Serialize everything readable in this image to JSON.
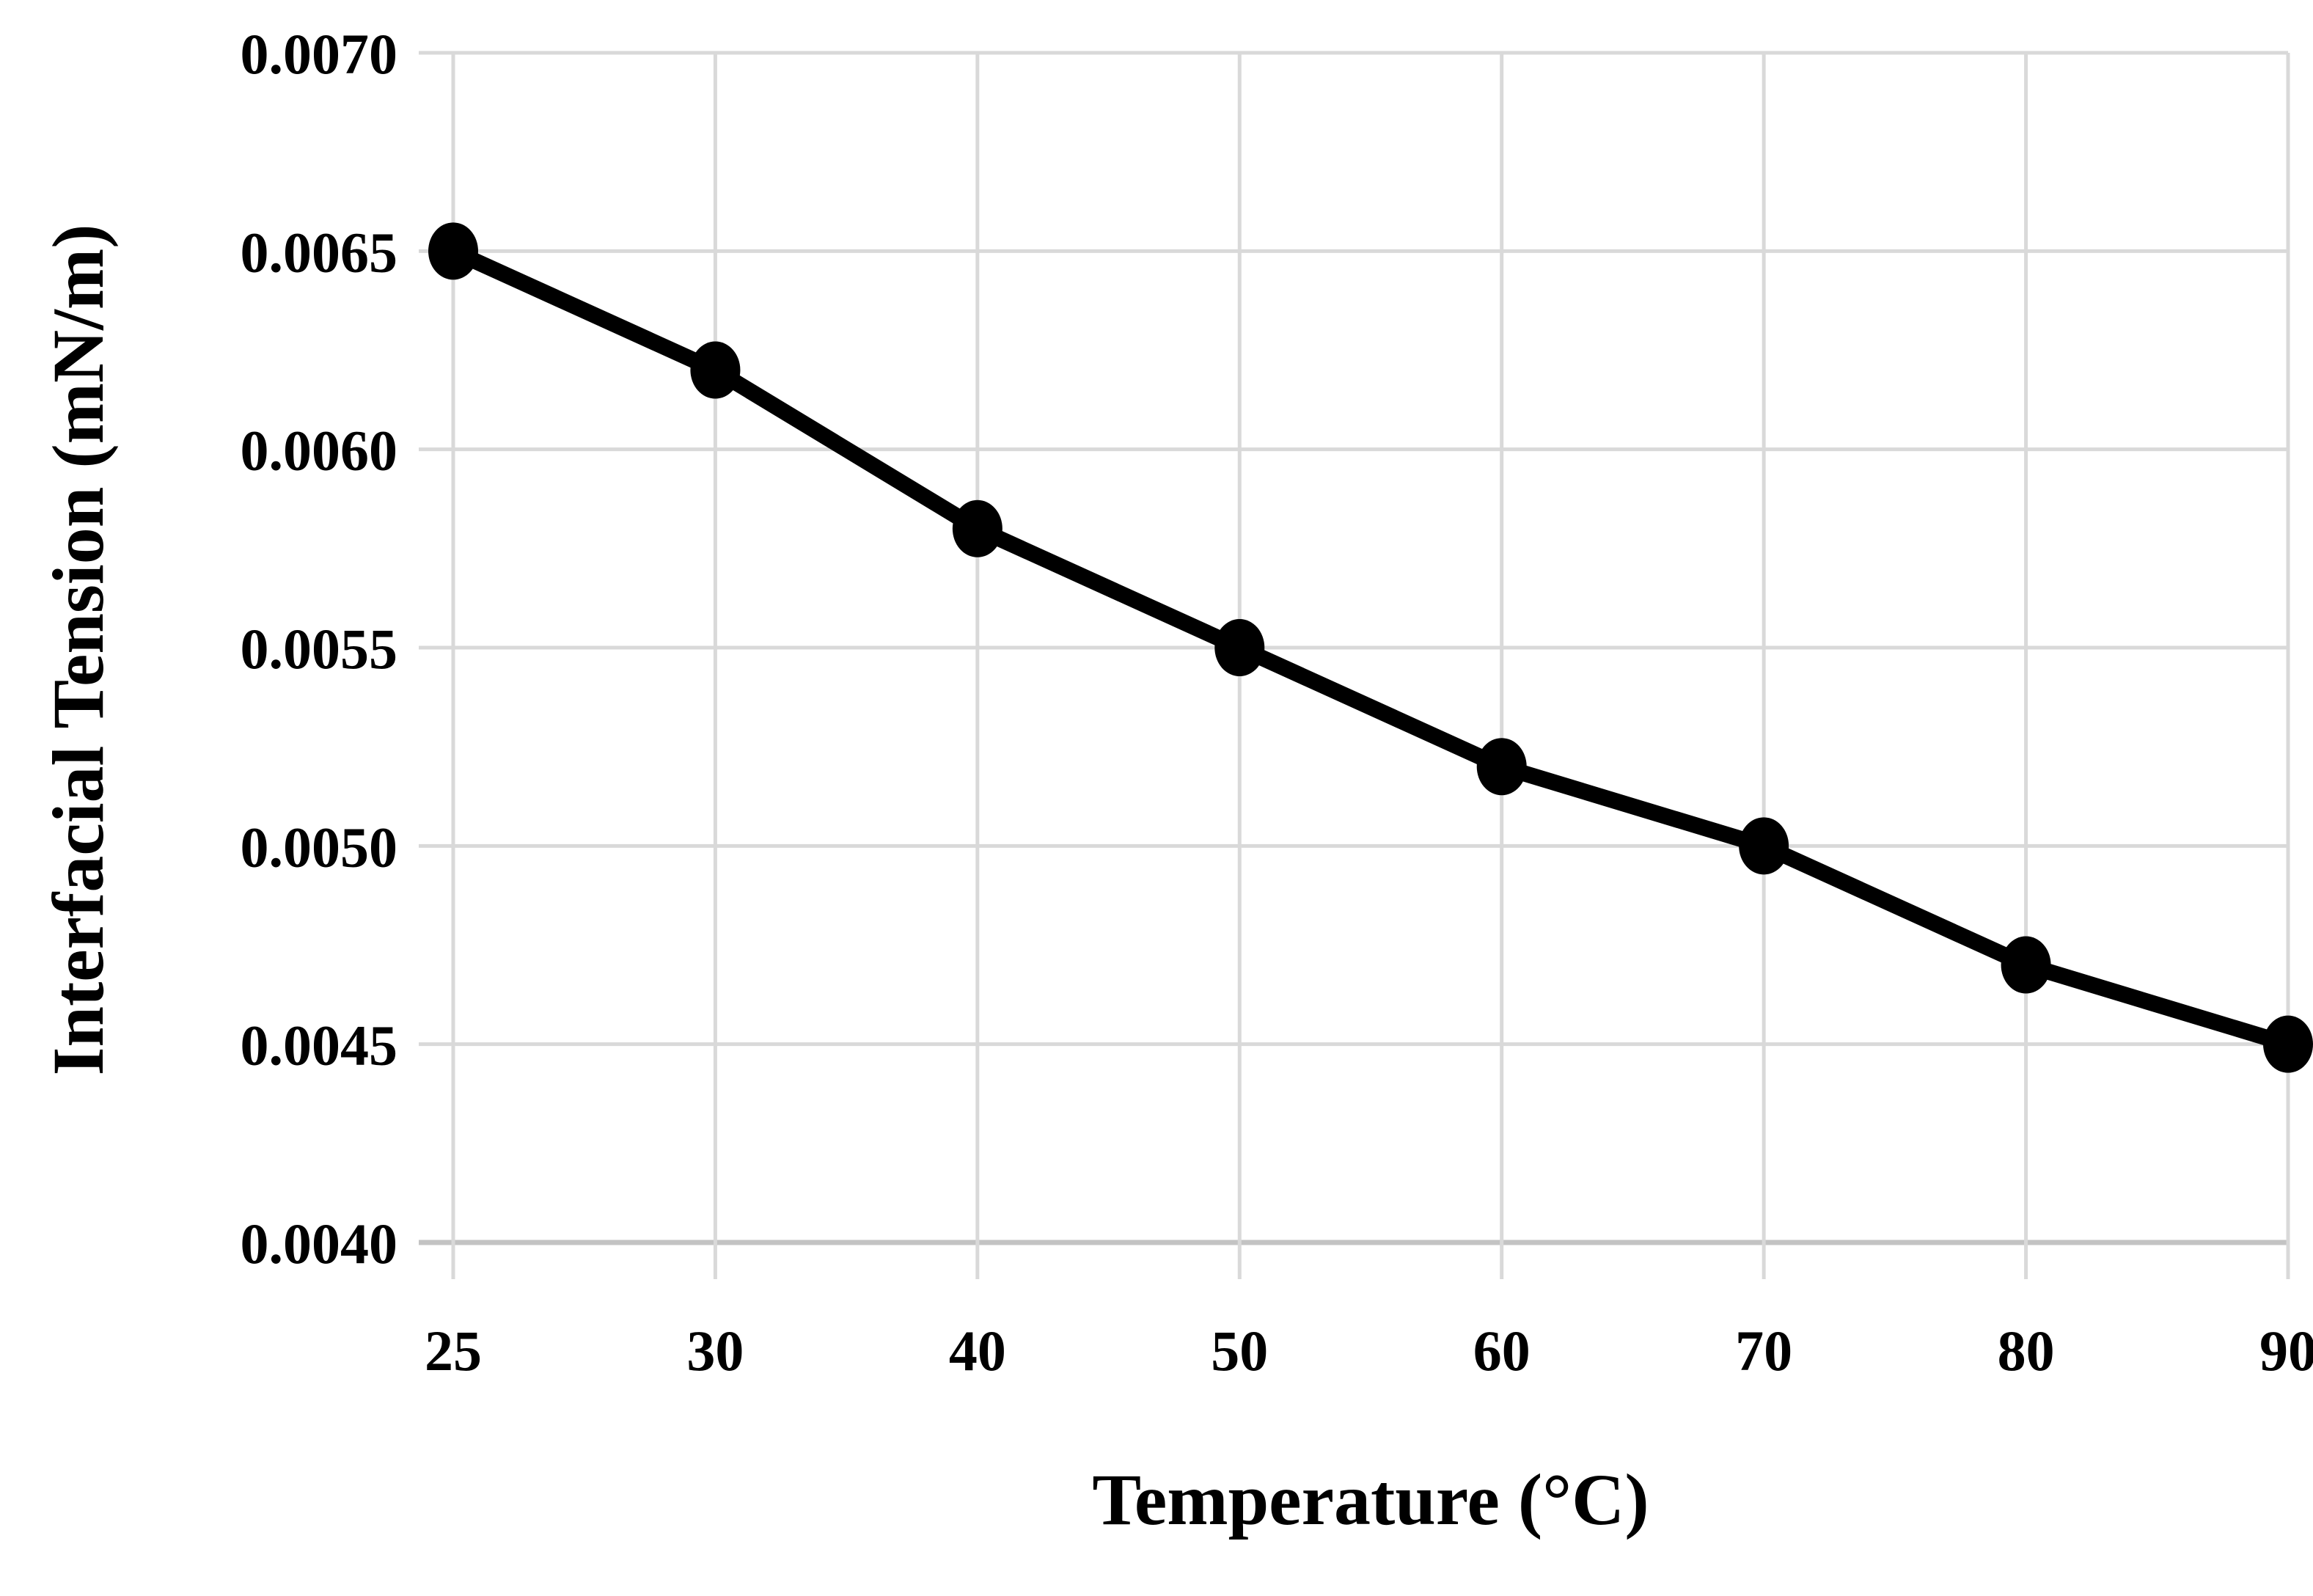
{
  "chart_data": {
    "type": "line",
    "title": "",
    "xlabel": "Temperature (°C)",
    "ylabel": "Interfacial Tension (mN/m)",
    "x_axis_type": "category",
    "categories": [
      25,
      30,
      40,
      50,
      60,
      70,
      80,
      90
    ],
    "x_tick_labels": [
      "25",
      "30",
      "40",
      "50",
      "60",
      "70",
      "80",
      "90"
    ],
    "values": [
      0.0065,
      0.0062,
      0.0058,
      0.0055,
      0.0052,
      0.005,
      0.0047,
      0.0045
    ],
    "y_ticks": [
      0.004,
      0.0045,
      0.005,
      0.0055,
      0.006,
      0.0065,
      0.007
    ],
    "y_tick_labels": [
      "0.0040",
      "0.0045",
      "0.0050",
      "0.0055",
      "0.0060",
      "0.0065",
      "0.0070"
    ],
    "ylim": [
      0.004,
      0.007
    ],
    "grid": true,
    "legend": "none",
    "marker": "circle",
    "line_color": "#000000",
    "marker_color": "#000000",
    "gridline_color": "#d9d9d9",
    "axis_line_color": "#c3c3c3",
    "text_color": "#000000",
    "background": "#ffffff"
  }
}
